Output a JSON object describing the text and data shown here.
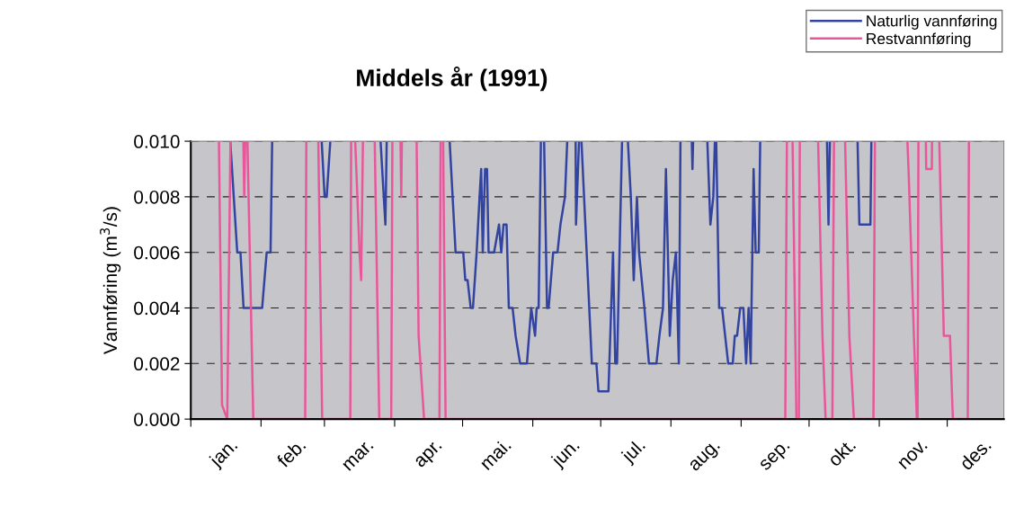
{
  "chart_data": {
    "type": "line",
    "title": "Middels år (1991)",
    "ylabel": "Vannføring (m$^{3}$/s)",
    "xlim": [
      "1991-01-01",
      "1991-12-26"
    ],
    "ylim": [
      0,
      0.01
    ],
    "xticks": [
      {
        "value": "1991-01-01",
        "label": null
      },
      {
        "value": "1991-01-16",
        "label": "jan."
      },
      {
        "value": "1991-02-01",
        "label": null
      },
      {
        "value": "1991-02-15",
        "label": "feb."
      },
      {
        "value": "1991-03-01",
        "label": null
      },
      {
        "value": "1991-03-16",
        "label": "mar."
      },
      {
        "value": "1991-04-01",
        "label": null
      },
      {
        "value": "1991-04-16",
        "label": "apr."
      },
      {
        "value": "1991-05-01",
        "label": null
      },
      {
        "value": "1991-05-16",
        "label": "mai."
      },
      {
        "value": "1991-06-01",
        "label": null
      },
      {
        "value": "1991-06-16",
        "label": "jun."
      },
      {
        "value": "1991-07-01",
        "label": null
      },
      {
        "value": "1991-07-16",
        "label": "jul."
      },
      {
        "value": "1991-08-01",
        "label": null
      },
      {
        "value": "1991-08-16",
        "label": "aug."
      },
      {
        "value": "1991-09-01",
        "label": null
      },
      {
        "value": "1991-09-16",
        "label": "sep."
      },
      {
        "value": "1991-10-01",
        "label": null
      },
      {
        "value": "1991-10-16",
        "label": "okt."
      },
      {
        "value": "1991-11-01",
        "label": null
      },
      {
        "value": "1991-11-16",
        "label": "nov."
      },
      {
        "value": "1991-12-01",
        "label": null
      },
      {
        "value": "1991-12-14",
        "label": "des."
      }
    ],
    "yticks": [
      {
        "value": 0,
        "label": "0.000"
      },
      {
        "value": 0.002,
        "label": "0.002"
      },
      {
        "value": 0.004,
        "label": "0.004"
      },
      {
        "value": 0.006,
        "label": "0.006"
      },
      {
        "value": 0.008,
        "label": "0.008"
      },
      {
        "value": 0.01,
        "label": "0.010"
      }
    ],
    "grid": "y",
    "legend": "top right",
    "marker": "none",
    "line_style": "solid",
    "series": [
      {
        "name": "Naturlig vannføring",
        "color": "#3344a0",
        "x": [
          "1991-01-18T10:00",
          "1991-01-21T12:00",
          "1991-01-22T22:00",
          "1991-01-24T07:00",
          "1991-02-01T12:00",
          "1991-02-03T12:00",
          "1991-02-05T05:00",
          "1991-02-05T22:00",
          "1991-02-10T00:00",
          "1991-02-27T19:00",
          "1991-03-01T02:00",
          "1991-03-02T00:00",
          "1991-03-03T14:00",
          "1991-03-12T00:00",
          "1991-03-25T19:00",
          "1991-03-27T22:00",
          "1991-03-28T12:00",
          "1991-04-11T00:00",
          "1991-04-25T07:00",
          "1991-04-27T22:00",
          "1991-05-01T07:00",
          "1991-05-02T05:00",
          "1991-05-03T05:00",
          "1991-05-04T14:00",
          "1991-05-05T14:00",
          "1991-05-07T05:00",
          "1991-05-08T12:00",
          "1991-05-09T05:00",
          "1991-05-09T22:00",
          "1991-05-10T22:00",
          "1991-05-11T19:00",
          "1991-05-12T12:00",
          "1991-05-14T22:00",
          "1991-05-17T02:00",
          "1991-05-18T02:00",
          "1991-05-19T02:00",
          "1991-05-20T10:00",
          "1991-05-21T10:00",
          "1991-05-23T02:00",
          "1991-05-24T10:00",
          "1991-05-26T10:00",
          "1991-05-29T10:00",
          "1991-05-31T07:00",
          "1991-06-02T00:00",
          "1991-06-02T17:00",
          "1991-06-03T14:00",
          "1991-06-04T14:00",
          "1991-06-05T07:00",
          "1991-06-06T00:00",
          "1991-06-07T07:00",
          "1991-06-08T00:00",
          "1991-06-10T00:00",
          "1991-06-11T22:00",
          "1991-06-13T05:00",
          "1991-06-15T05:00",
          "1991-06-16T05:00",
          "1991-06-18T00:00",
          "1991-06-19T22:00",
          "1991-06-20T02:00",
          "1991-06-21T10:00",
          "1991-06-22T00:00",
          "1991-06-22T12:00",
          "1991-06-27T02:00",
          "1991-06-29T02:00",
          "1991-06-30T00:00",
          "1991-07-04T10:00",
          "1991-07-06T10:00",
          "1991-07-07T10:00",
          "1991-07-08T05:00",
          "1991-07-10T10:00",
          "1991-07-11T12:00",
          "1991-07-13T00:00",
          "1991-07-14T07:00",
          "1991-07-15T14:00",
          "1991-07-17T00:00",
          "1991-07-17T22:00",
          "1991-07-20T07:00",
          "1991-07-22T07:00",
          "1991-07-25T14:00",
          "1991-07-26T22:00",
          "1991-07-28T12:00",
          "1991-07-29T19:00",
          "1991-07-31T12:00",
          "1991-08-01T19:00",
          "1991-08-03T05:00",
          "1991-08-04T12:00",
          "1991-08-05T05:00",
          "1991-08-07T00:00",
          "1991-08-10T05:00",
          "1991-08-10T12:00",
          "1991-08-10T19:00",
          "1991-08-14T00:00",
          "1991-08-17T02:00",
          "1991-08-18T10:00",
          "1991-08-19T17:00",
          "1991-08-20T10:00",
          "1991-08-20T17:00",
          "1991-08-21T00:00",
          "1991-08-22T07:00",
          "1991-08-23T14:00",
          "1991-08-26T07:00",
          "1991-08-28T07:00",
          "1991-08-29T05:00",
          "1991-08-30T05:00",
          "1991-08-31T14:00",
          "1991-09-02T00:00",
          "1991-09-03T05:00",
          "1991-09-04T07:00",
          "1991-09-05T05:00",
          "1991-09-06T12:00",
          "1991-09-07T10:00",
          "1991-09-08T19:00",
          "1991-09-09T10:00",
          "1991-09-18T00:00",
          "1991-10-08T22:00",
          "1991-10-09T14:00",
          "1991-10-10T05:00",
          "1991-10-18T00:00",
          "1991-10-22T10:00",
          "1991-10-23T05:00",
          "1991-10-28T02:00",
          "1991-10-28T12:00"
        ],
        "values": [
          0.01,
          0.006,
          0.006,
          0.004,
          0.004,
          0.006,
          0.006,
          0.01,
          null,
          0.01,
          0.008,
          0.008,
          0.01,
          null,
          0.01,
          0.007,
          0.01,
          null,
          0.01,
          0.006,
          0.006,
          0.005,
          0.005,
          0.004,
          0.004,
          0.006,
          0.008,
          0.009,
          0.006,
          0.009,
          0.009,
          0.006,
          0.006,
          0.007,
          0.006,
          0.007,
          0.007,
          0.004,
          0.004,
          0.003,
          0.002,
          0.002,
          0.004,
          0.003,
          0.004,
          0.004,
          0.01,
          null,
          0.01,
          0.004,
          0.004,
          0.006,
          0.006,
          0.007,
          0.008,
          0.01,
          null,
          0.01,
          0.007,
          0.01,
          null,
          0.01,
          0.002,
          0.002,
          0.001,
          0.001,
          0.006,
          0.002,
          0.002,
          0.01,
          null,
          0.01,
          0.008,
          0.005,
          0.008,
          0.006,
          0.004,
          0.002,
          0.002,
          0.003,
          0.004,
          0.009,
          0.003,
          0.005,
          0.006,
          0.002,
          0.01,
          null,
          0.01,
          0.009,
          0.01,
          null,
          0.01,
          0.007,
          0.008,
          0.01,
          null,
          0.01,
          0.004,
          0.004,
          0.002,
          0.002,
          0.003,
          0.003,
          0.004,
          0.004,
          0.002,
          0.004,
          0.002,
          0.009,
          0.006,
          0.006,
          0.01,
          null,
          0.01,
          0.007,
          0.01,
          null,
          0.01,
          0.007,
          0.007,
          0.01
        ]
      },
      {
        "name": "Restvannføring",
        "color": "#e8579a",
        "x": [
          "1991-01-13T10:00",
          "1991-01-14T19:00",
          "1991-01-17T02:00",
          "1991-01-18T12:00",
          "1991-01-19T00:00",
          "1991-01-24T05:00",
          "1991-01-24T14:00",
          "1991-01-25T00:00",
          "1991-01-25T12:00",
          "1991-01-26T00:00",
          "1991-01-28T14:00",
          "1991-02-20T12:00",
          "1991-02-21T00:00",
          "1991-02-22T00:00",
          "1991-02-26T07:00",
          "1991-02-28T00:00",
          "1991-03-12T10:00",
          "1991-03-12T19:00",
          "1991-03-13T12:00",
          "1991-03-14T14:00",
          "1991-03-16T12:00",
          "1991-03-17T05:00",
          "1991-03-18T00:00",
          "1991-03-19T00:00",
          "1991-03-23T05:00",
          "1991-03-25T05:00",
          "1991-03-30T12:00",
          "1991-03-31T00:00",
          "1991-04-01T00:00",
          "1991-04-03T14:00",
          "1991-04-03T22:00",
          "1991-04-04T05:00",
          "1991-04-05T00:00",
          "1991-04-10T17:00",
          "1991-04-11T14:00",
          "1991-04-14T00:00",
          "1991-04-20T19:00",
          "1991-04-21T07:00",
          "1991-04-21T19:00",
          "1991-04-22T10:00",
          "1991-04-23T12:00",
          "1991-09-20T12:00",
          "1991-09-21T05:00",
          "1991-09-22T00:00",
          "1991-09-23T17:00",
          "1991-09-25T10:00",
          "1991-09-26T12:00",
          "1991-09-26T22:00",
          "1991-09-28T00:00",
          "1991-10-05T00:00",
          "1991-10-06T22:00",
          "1991-10-08T07:00",
          "1991-10-11T07:00",
          "1991-10-12T00:00",
          "1991-10-13T00:00",
          "1991-10-16T22:00",
          "1991-10-18T19:00",
          "1991-10-20T19:00",
          "1991-10-29T10:00",
          "1991-10-30T02:00",
          "1991-10-31T00:00",
          "1991-11-13T10:00",
          "1991-11-13T22:00",
          "1991-11-16T07:00",
          "1991-11-17T14:00",
          "1991-11-17T22:00",
          "1991-11-18T07:00",
          "1991-11-19T00:00",
          "1991-11-21T14:00",
          "1991-11-21T17:00",
          "1991-11-24T05:00",
          "1991-11-24T07:00",
          "1991-11-25T00:00",
          "1991-11-27T12:00",
          "1991-11-29T12:00",
          "1991-12-02T05:00",
          "1991-12-03T12:00",
          "1991-12-10T02:00",
          "1991-12-10T14:00"
        ],
        "values": [
          0.01,
          0.0005,
          0,
          0.01,
          null,
          0.01,
          0.008,
          0.01,
          null,
          0.01,
          0,
          0,
          0.01,
          null,
          0.01,
          0,
          0,
          0.01,
          null,
          0.01,
          0.006,
          0.005,
          0.01,
          null,
          0.01,
          0,
          0,
          0.01,
          null,
          0.01,
          0.008,
          0.01,
          null,
          0.01,
          0.003,
          0,
          0,
          0.01,
          null,
          0.01,
          0,
          0,
          0.01,
          null,
          0.01,
          0,
          0,
          0.01,
          null,
          0.01,
          0.003,
          0,
          0,
          0.01,
          null,
          0.01,
          0.003,
          0,
          0,
          0.01,
          null,
          0.01,
          0.009,
          0.003,
          0,
          0,
          0.01,
          null,
          0.01,
          0.009,
          0.009,
          0.01,
          null,
          0.01,
          0.003,
          0.003,
          0,
          0,
          0.01
        ]
      }
    ]
  }
}
